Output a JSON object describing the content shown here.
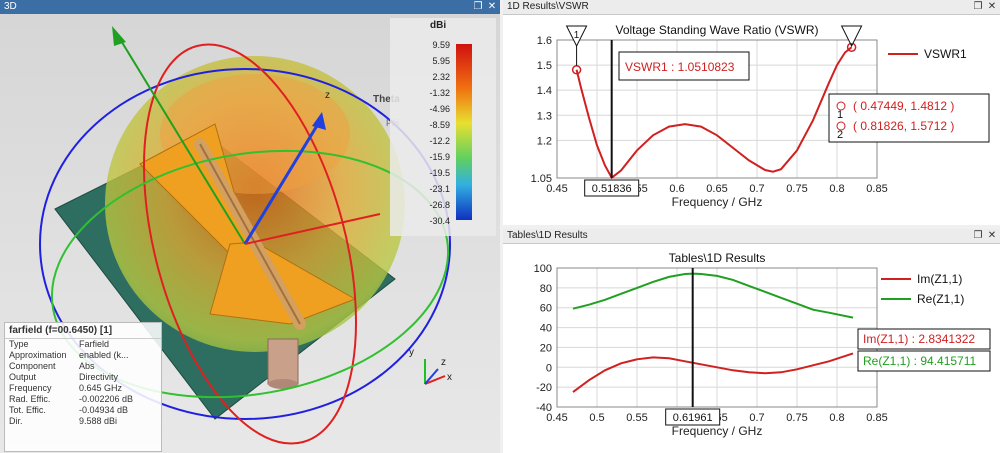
{
  "panes": {
    "view3d": {
      "title": "3D"
    },
    "vswr": {
      "title": "1D Results\\VSWR"
    },
    "tables": {
      "title": "Tables\\1D Results"
    }
  },
  "colors": {
    "red": "#d02020",
    "green": "#20a020",
    "titlebar": "#3a6ea5"
  },
  "view3d": {
    "colorbar": {
      "unit": "dBi",
      "ticks": [
        "9.59",
        "5.95",
        "2.32",
        "-1.32",
        "-4.96",
        "-8.59",
        "-12.2",
        "-15.9",
        "-19.5",
        "-23.1",
        "-26.8",
        "-30.4"
      ]
    },
    "axis_labels": {
      "theta": "Theta",
      "phi": "Phi",
      "z": "z",
      "x": "x",
      "y": "y"
    },
    "info": {
      "heading": "farfield (f=00.6450) [1]",
      "rows": [
        {
          "k": "Type",
          "v": "Farfield"
        },
        {
          "k": "Approximation",
          "v": "enabled (k..."
        },
        {
          "k": "Component",
          "v": "Abs"
        },
        {
          "k": "Output",
          "v": "Directivity"
        },
        {
          "k": "Frequency",
          "v": "0.645 GHz"
        },
        {
          "k": "Rad. Effic.",
          "v": "-0.002206 dB"
        },
        {
          "k": "Tot. Effic.",
          "v": "-0.04934 dB"
        },
        {
          "k": "Dir.",
          "v": "9.588 dBi"
        }
      ]
    }
  },
  "chart_data": [
    {
      "type": "line",
      "title": "Voltage Standing Wave Ratio (VSWR)",
      "xlabel": "Frequency / GHz",
      "ylabel": "",
      "xlim": [
        0.45,
        0.85
      ],
      "ylim": [
        1.05,
        1.6
      ],
      "xticks": [
        "0.45",
        "0.5",
        "0.55",
        "0.6",
        "0.65",
        "0.7",
        "0.75",
        "0.8",
        "0.85"
      ],
      "yticks": [
        "1.05",
        "1.2",
        "1.3",
        "1.4",
        "1.5",
        "1.6"
      ],
      "series": [
        {
          "name": "VSWR1",
          "color": "#d02020",
          "x": [
            0.47449,
            0.48,
            0.49,
            0.5,
            0.51,
            0.51836,
            0.53,
            0.55,
            0.57,
            0.59,
            0.61,
            0.63,
            0.65,
            0.67,
            0.69,
            0.71,
            0.72,
            0.73,
            0.75,
            0.77,
            0.79,
            0.8,
            0.81,
            0.81826
          ],
          "y": [
            1.4812,
            1.41,
            1.29,
            1.18,
            1.1,
            1.0511,
            1.08,
            1.16,
            1.22,
            1.255,
            1.265,
            1.255,
            1.22,
            1.17,
            1.12,
            1.082,
            1.075,
            1.085,
            1.16,
            1.28,
            1.43,
            1.5,
            1.55,
            1.5712
          ]
        }
      ],
      "cursor_x": 0.51836,
      "cursor_label": "0.51836",
      "cursor_readout": "VSWR1 : 1.0510823",
      "markers": [
        {
          "id": "1",
          "x": 0.47449,
          "y": 1.4812,
          "label": "( 0.47449, 1.4812 )"
        },
        {
          "id": "2",
          "x": 0.81826,
          "y": 1.5712,
          "label": "( 0.81826, 1.5712 )"
        }
      ]
    },
    {
      "type": "line",
      "title": "Tables\\1D Results",
      "xlabel": "Frequency / GHz",
      "ylabel": "",
      "xlim": [
        0.45,
        0.85
      ],
      "ylim": [
        -40,
        100
      ],
      "xticks": [
        "0.45",
        "0.5",
        "0.55",
        "0.6",
        "0.65",
        "0.7",
        "0.75",
        "0.8",
        "0.85"
      ],
      "yticks": [
        "-40",
        "-20",
        "0",
        "20",
        "40",
        "60",
        "80",
        "100"
      ],
      "series": [
        {
          "name": "Im(Z1,1)",
          "color": "#d02020",
          "x": [
            0.47,
            0.49,
            0.51,
            0.53,
            0.55,
            0.57,
            0.59,
            0.61,
            0.63,
            0.65,
            0.67,
            0.69,
            0.71,
            0.73,
            0.75,
            0.77,
            0.79,
            0.82
          ],
          "y": [
            -25,
            -13,
            -3,
            4,
            8,
            10,
            9,
            6,
            3,
            0,
            -3,
            -5,
            -6,
            -5,
            -2,
            2,
            6,
            14
          ]
        },
        {
          "name": "Re(Z1,1)",
          "color": "#20a020",
          "x": [
            0.47,
            0.49,
            0.51,
            0.53,
            0.55,
            0.57,
            0.59,
            0.61,
            0.62,
            0.63,
            0.65,
            0.67,
            0.69,
            0.71,
            0.73,
            0.75,
            0.77,
            0.79,
            0.82
          ],
          "y": [
            59,
            63,
            68,
            74,
            80,
            86,
            91,
            94,
            94.4,
            94,
            92,
            88,
            82,
            76,
            70,
            64,
            58,
            55,
            50
          ]
        }
      ],
      "cursor_x": 0.61961,
      "cursor_label": "0.61961",
      "readouts": [
        "Im(Z1,1) : 2.8341322",
        "Re(Z1,1) : 94.415711"
      ]
    }
  ]
}
